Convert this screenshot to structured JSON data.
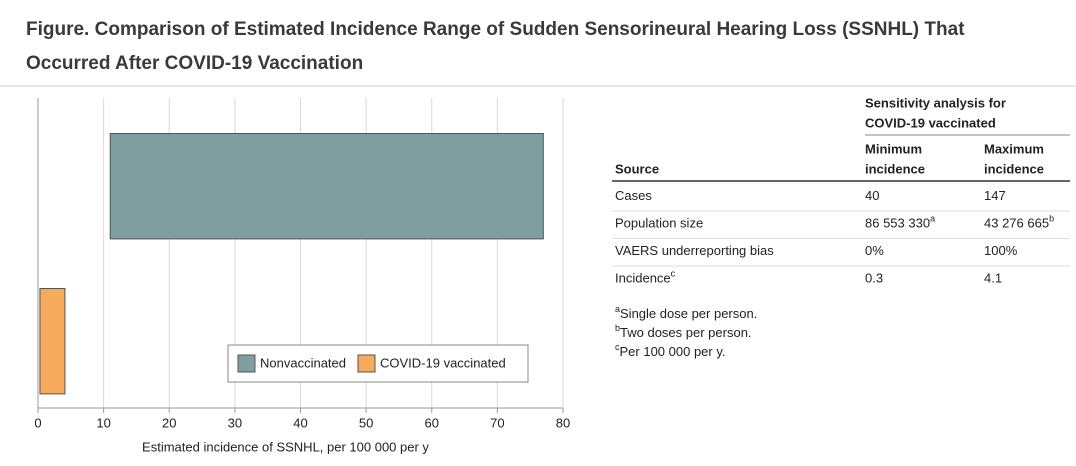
{
  "chart_data": {
    "type": "range-bar",
    "title_lines": [
      "Figure. Comparison of Estimated Incidence Range of Sudden Sensorineural Hearing Loss (SSNHL) That",
      "Occurred After COVID-19 Vaccination"
    ],
    "series": [
      {
        "name": "Nonvaccinated",
        "color": "#7f9ea0",
        "low": 11,
        "high": 77
      },
      {
        "name": "COVID-19 vaccinated",
        "color": "#f7a95c",
        "low": 0.3,
        "high": 4.1
      }
    ],
    "xlabel": "Estimated incidence of SSNHL, per 100 000 per y",
    "xlim": [
      0,
      80
    ],
    "xticks": [
      0,
      10,
      20,
      30,
      40,
      50,
      60,
      70,
      80
    ],
    "grid": true,
    "legend": "lower right"
  },
  "table": {
    "group_header": [
      "Sensitivity analysis for",
      "COVID-19 vaccinated"
    ],
    "columns": [
      "Source",
      [
        "Minimum",
        "incidence"
      ],
      [
        "Maximum",
        "incidence"
      ]
    ],
    "rows": [
      [
        {
          "text": "Cases"
        },
        {
          "text": "40"
        },
        {
          "text": "147"
        }
      ],
      [
        {
          "text": "Population size"
        },
        {
          "text": "86 553 330",
          "sup": "a"
        },
        {
          "text": "43 276 665",
          "sup": "b"
        }
      ],
      [
        {
          "text": "VAERS underreporting bias"
        },
        {
          "text": "0%"
        },
        {
          "text": "100%"
        }
      ],
      [
        {
          "text": "Incidence",
          "sup": "c"
        },
        {
          "text": "0.3"
        },
        {
          "text": "4.1"
        }
      ]
    ],
    "footnotes": [
      {
        "sup": "a",
        "text": "Single dose per person."
      },
      {
        "sup": "b",
        "text": "Two doses per person."
      },
      {
        "sup": "c",
        "text": "Per 100 000 per y."
      }
    ]
  }
}
